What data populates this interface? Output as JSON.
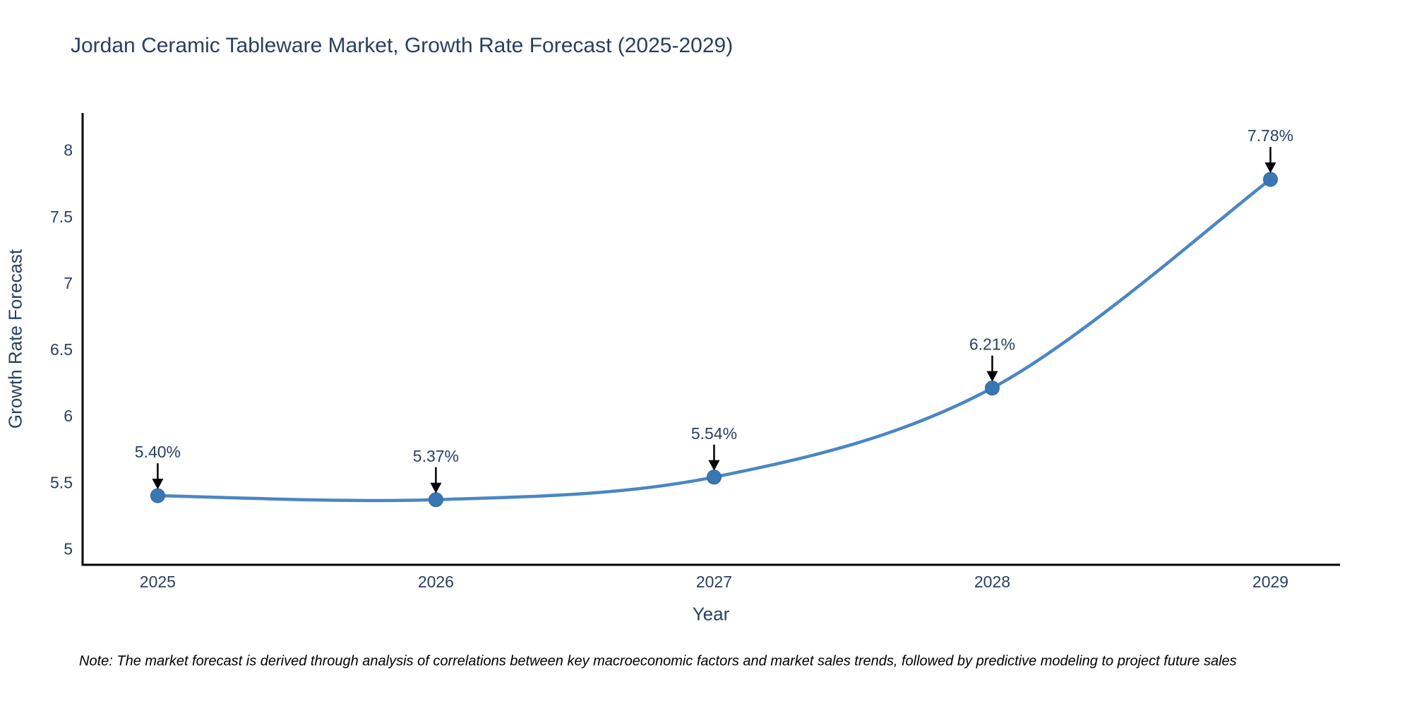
{
  "chart_data": {
    "type": "line",
    "title": "Jordan Ceramic Tableware Market, Growth Rate Forecast (2025-2029)",
    "xlabel": "Year",
    "ylabel": "Growth Rate Forecast",
    "x": [
      2025,
      2026,
      2027,
      2028,
      2029
    ],
    "values": [
      5.4,
      5.37,
      5.54,
      6.21,
      7.78
    ],
    "point_labels": [
      "5.40%",
      "5.37%",
      "5.54%",
      "6.21%",
      "7.78%"
    ],
    "x_tick_labels": [
      "2025",
      "2026",
      "2027",
      "2028",
      "2029"
    ],
    "y_ticks": [
      5,
      5.5,
      6,
      6.5,
      7,
      7.5,
      8
    ],
    "y_tick_labels": [
      "5",
      "5.5",
      "6",
      "6.5",
      "7",
      "7.5",
      "8"
    ],
    "xlim": [
      2024.73,
      2029.25
    ],
    "ylim": [
      4.88,
      8.28
    ],
    "line_shape": "spline",
    "grid": false,
    "legend_position": "none",
    "line_color": "#4a86c3",
    "marker_color": "#3977b4",
    "marker_edge_color": "#2f659c",
    "axis_color": "#000000",
    "tick_text_color": "#2a3f5f",
    "annotation_text_color": "#2a3f5f",
    "annotation_arrow_color": "#000000"
  },
  "footnote": {
    "text": "Note: The market forecast is derived through analysis of correlations between key macroeconomic factors and market sales trends, followed by predictive modeling to project future sales"
  }
}
